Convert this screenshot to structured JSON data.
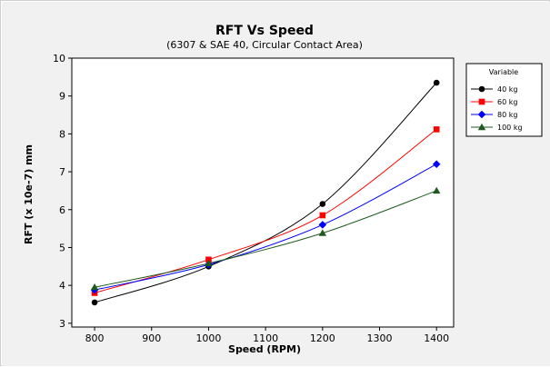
{
  "colors": {
    "background": "#f1f1f1",
    "plot_background": "#ffffff",
    "series": [
      "#000000",
      "#ff0000",
      "#0000ff",
      "#1e5a1e"
    ]
  },
  "chart_data": {
    "type": "line",
    "title": "RFT Vs Speed",
    "subtitle": "(6307 & SAE 40, Circular Contact Area)",
    "xlabel": "Speed (RPM)",
    "ylabel": "RFT (x 10e-7) mm",
    "xlim": [
      760,
      1430
    ],
    "ylim": [
      2.9,
      10.0
    ],
    "x_ticks": [
      800,
      900,
      1000,
      1100,
      1200,
      1300,
      1400
    ],
    "y_ticks": [
      3,
      4,
      5,
      6,
      7,
      8,
      9,
      10
    ],
    "x": [
      800,
      1000,
      1200,
      1400
    ],
    "grid": false,
    "legend_title": "Variable",
    "legend_position": "right",
    "series": [
      {
        "name": "40 kg",
        "marker": "circle",
        "values": [
          3.55,
          4.5,
          6.15,
          9.35
        ]
      },
      {
        "name": "60 kg",
        "marker": "square",
        "values": [
          3.8,
          4.68,
          5.85,
          8.12
        ]
      },
      {
        "name": "80 kg",
        "marker": "diamond",
        "values": [
          3.88,
          4.55,
          5.6,
          7.2
        ]
      },
      {
        "name": "100 kg",
        "marker": "triangle",
        "values": [
          3.95,
          4.58,
          5.38,
          6.5
        ]
      }
    ]
  }
}
